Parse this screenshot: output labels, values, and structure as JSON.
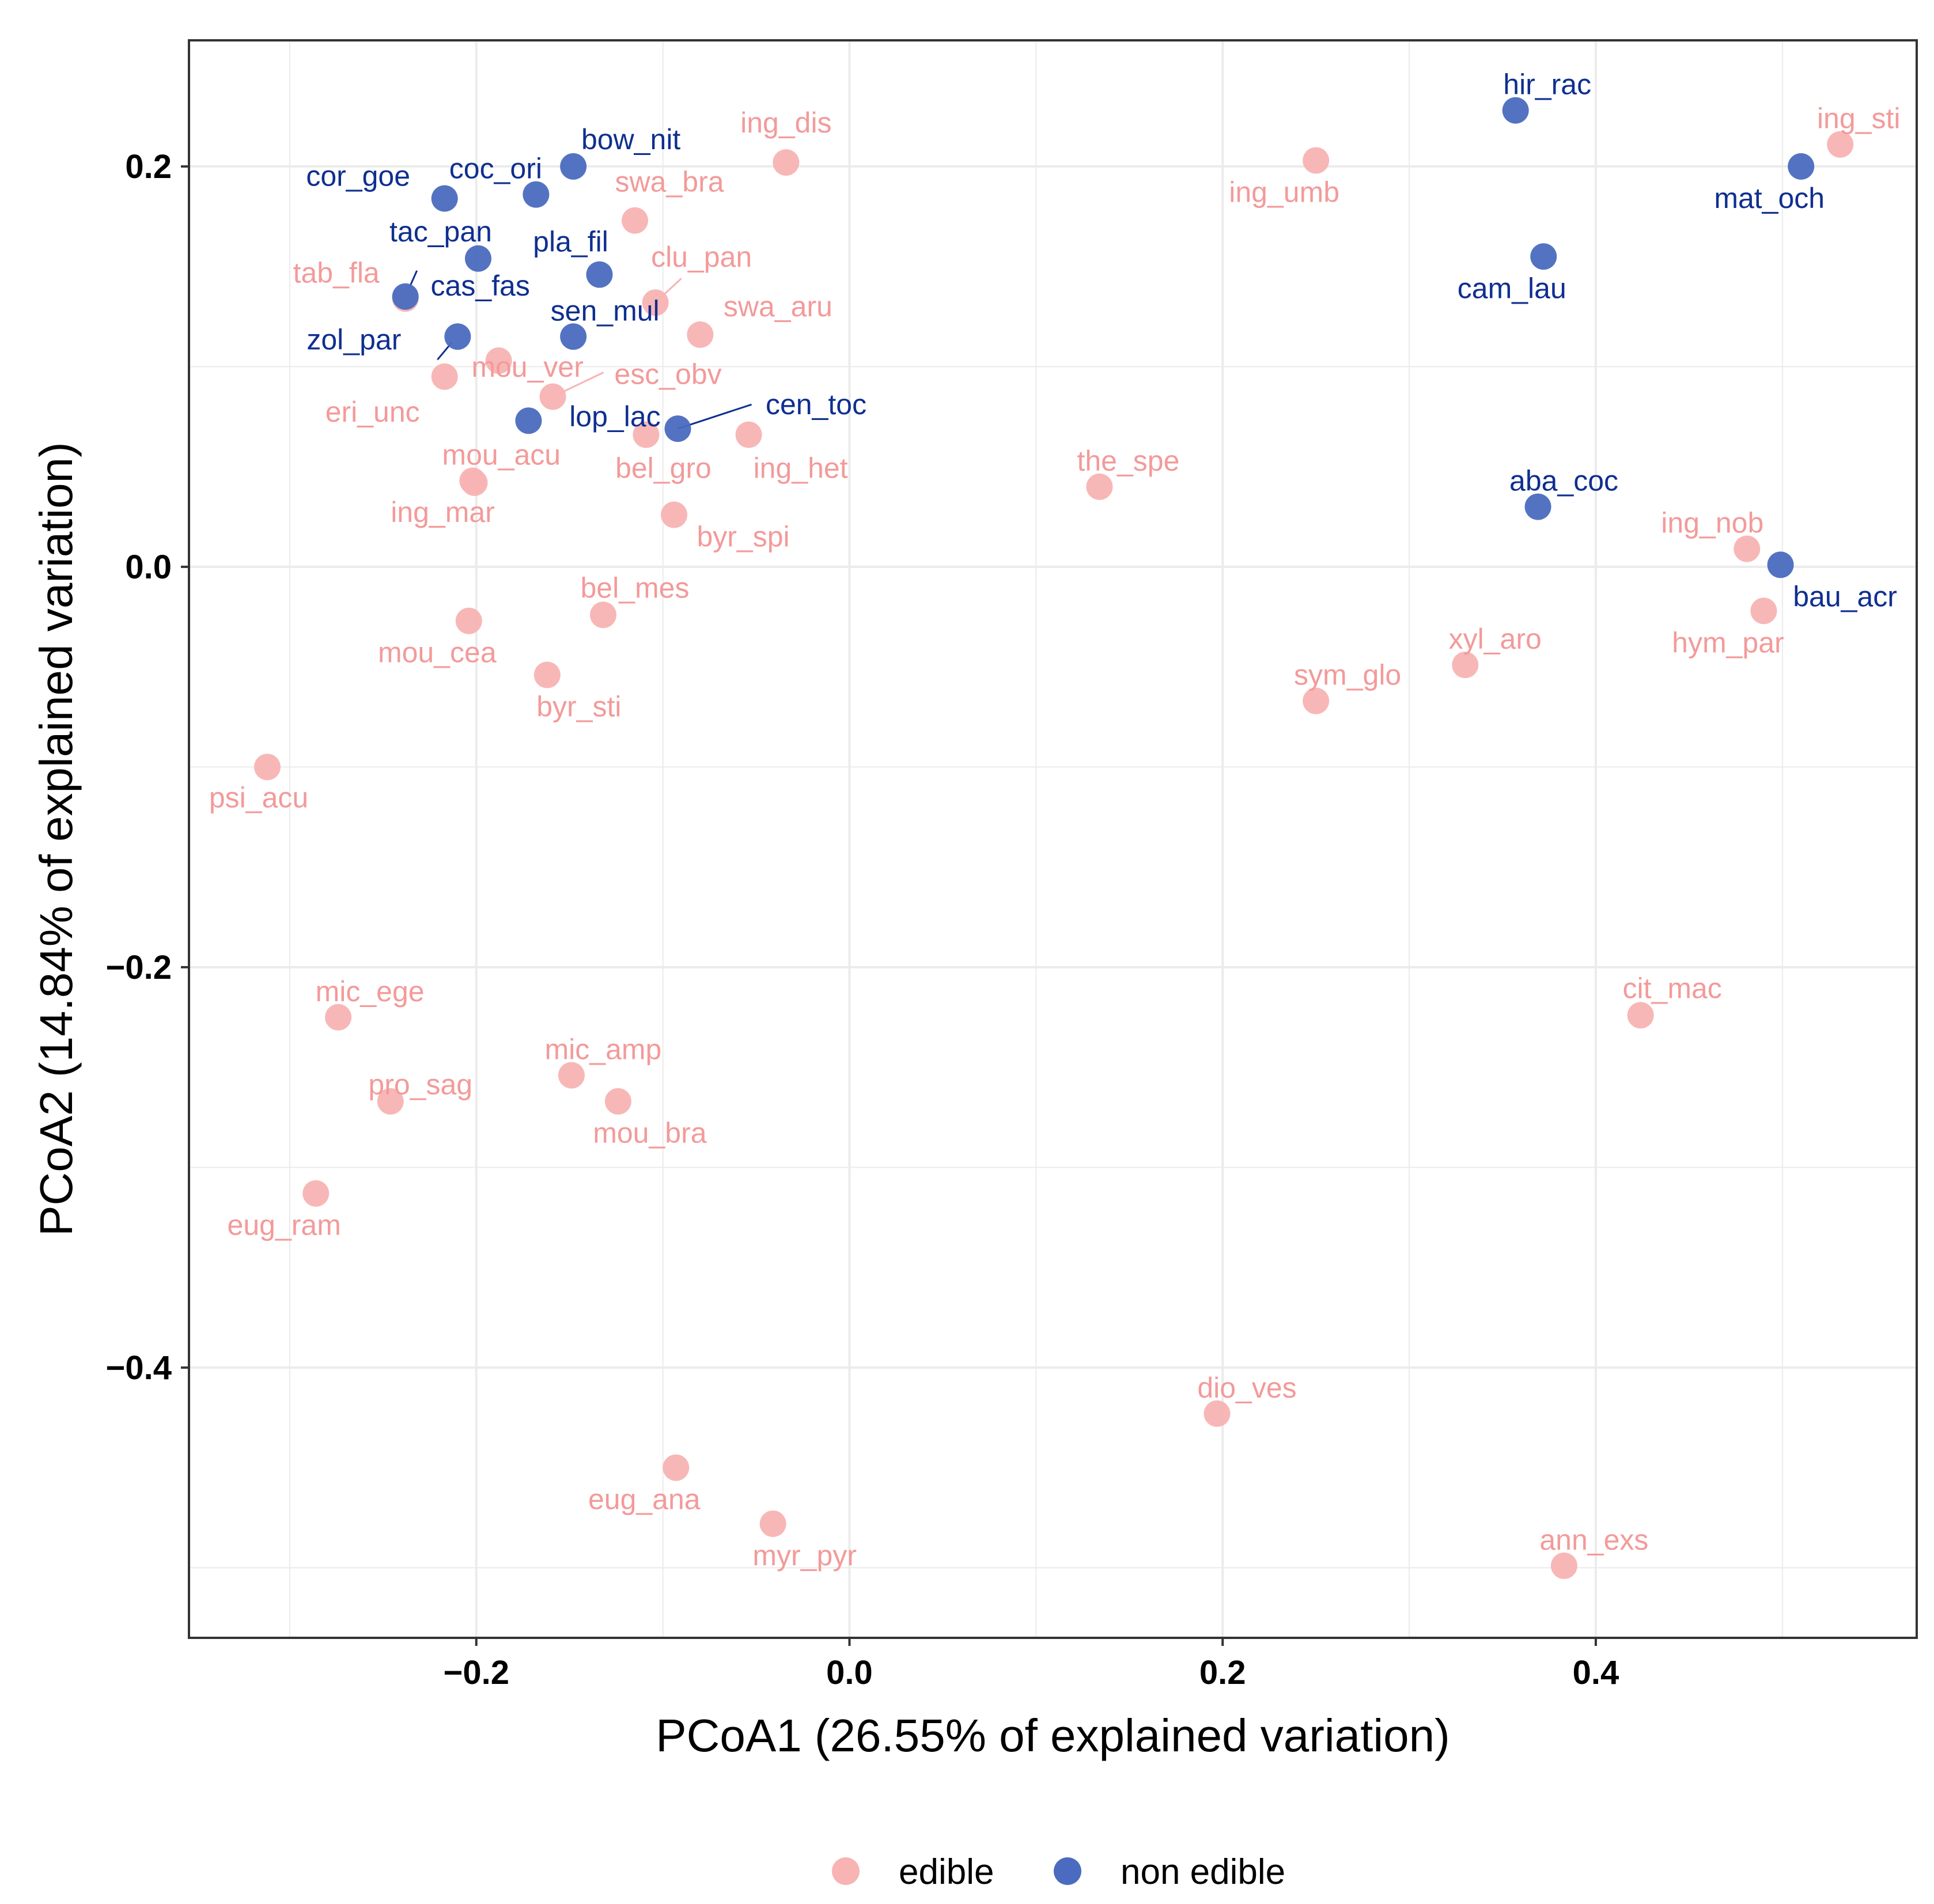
{
  "chart_data": {
    "type": "scatter",
    "xlabel": "PCoA1 (26.55% of explained variation)",
    "ylabel": "PCoA2 (14.84% of explained variation)",
    "xlim": [
      -0.354,
      0.572
    ],
    "ylim": [
      -0.535,
      0.263
    ],
    "xticks": [
      -0.2,
      0.0,
      0.2,
      0.4
    ],
    "yticks": [
      0.2,
      0.0,
      -0.2,
      -0.4
    ],
    "xtick_labels": [
      "−0.2",
      "0.0",
      "0.2",
      "0.4"
    ],
    "ytick_labels": [
      "0.2",
      "0.0",
      "−0.2",
      "−0.4"
    ],
    "grid": true,
    "legend_position": "bottom",
    "colors": {
      "edible": "#f8b3b3",
      "non_edible": "#4a6bbf",
      "edible_text": "#f39a9a",
      "non_edible_text": "#0f2f8f"
    },
    "series": [
      {
        "name": "edible",
        "points": [
          {
            "label": "ing_dis",
            "x": -0.034,
            "y": 0.202
          },
          {
            "label": "swa_bra",
            "x": -0.115,
            "y": 0.173
          },
          {
            "label": "clu_pan",
            "x": -0.104,
            "y": 0.132
          },
          {
            "label": "swa_aru",
            "x": -0.08,
            "y": 0.116
          },
          {
            "label": "tab_fla",
            "x": -0.238,
            "y": 0.134
          },
          {
            "label": "mou_ver",
            "x": -0.188,
            "y": 0.103
          },
          {
            "label": "esc_obv",
            "x": -0.159,
            "y": 0.085
          },
          {
            "label": "eri_unc",
            "x": -0.217,
            "y": 0.095
          },
          {
            "label": "bel_gro",
            "x": -0.109,
            "y": 0.066
          },
          {
            "label": "ing_het",
            "x": -0.054,
            "y": 0.066
          },
          {
            "label": "mou_acu",
            "x": -0.202,
            "y": 0.043
          },
          {
            "label": "ing_mar",
            "x": -0.201,
            "y": 0.042
          },
          {
            "label": "byr_spi",
            "x": -0.094,
            "y": 0.026
          },
          {
            "label": "bel_mes",
            "x": -0.132,
            "y": -0.024
          },
          {
            "label": "mou_cea",
            "x": -0.204,
            "y": -0.027
          },
          {
            "label": "byr_sti",
            "x": -0.162,
            "y": -0.054
          },
          {
            "label": "psi_acu",
            "x": -0.312,
            "y": -0.1
          },
          {
            "label": "mic_ege",
            "x": -0.274,
            "y": -0.225
          },
          {
            "label": "pro_sag",
            "x": -0.246,
            "y": -0.267
          },
          {
            "label": "mic_amp",
            "x": -0.149,
            "y": -0.254
          },
          {
            "label": "mou_bra",
            "x": -0.124,
            "y": -0.267
          },
          {
            "label": "eug_ram",
            "x": -0.286,
            "y": -0.313
          },
          {
            "label": "eug_ana",
            "x": -0.093,
            "y": -0.45
          },
          {
            "label": "myr_pyr",
            "x": -0.041,
            "y": -0.478
          },
          {
            "label": "ing_umb",
            "x": 0.25,
            "y": 0.203
          },
          {
            "label": "the_spe",
            "x": 0.134,
            "y": 0.04
          },
          {
            "label": "sym_glo",
            "x": 0.25,
            "y": -0.067
          },
          {
            "label": "xyl_aro",
            "x": 0.33,
            "y": -0.049
          },
          {
            "label": "dio_ves",
            "x": 0.197,
            "y": -0.423
          },
          {
            "label": "ann_exs",
            "x": 0.383,
            "y": -0.499
          },
          {
            "label": "cit_mac",
            "x": 0.424,
            "y": -0.224
          },
          {
            "label": "ing_sti",
            "x": 0.531,
            "y": 0.211
          },
          {
            "label": "ing_nob",
            "x": 0.481,
            "y": 0.009
          },
          {
            "label": "hym_par",
            "x": 0.49,
            "y": -0.022
          }
        ]
      },
      {
        "name": "non edible",
        "points": [
          {
            "label": "bow_nit",
            "x": -0.148,
            "y": 0.2
          },
          {
            "label": "coc_ori",
            "x": -0.168,
            "y": 0.186
          },
          {
            "label": "cor_goe",
            "x": -0.217,
            "y": 0.184
          },
          {
            "label": "tac_pan",
            "x": -0.199,
            "y": 0.154
          },
          {
            "label": "pla_fil",
            "x": -0.134,
            "y": 0.146
          },
          {
            "label": "cas_fas",
            "x": -0.238,
            "y": 0.135
          },
          {
            "label": "zol_par",
            "x": -0.21,
            "y": 0.115
          },
          {
            "label": "sen_mul",
            "x": -0.148,
            "y": 0.115
          },
          {
            "label": "lop_lac",
            "x": -0.172,
            "y": 0.073
          },
          {
            "label": "cen_toc",
            "x": -0.092,
            "y": 0.069
          },
          {
            "label": "hir_rac",
            "x": 0.357,
            "y": 0.228
          },
          {
            "label": "mat_och",
            "x": 0.51,
            "y": 0.2
          },
          {
            "label": "cam_lau",
            "x": 0.372,
            "y": 0.155
          },
          {
            "label": "aba_coc",
            "x": 0.369,
            "y": 0.03
          },
          {
            "label": "bau_acr",
            "x": 0.499,
            "y": 0.001
          }
        ]
      }
    ],
    "legend": [
      {
        "label": "edible"
      },
      {
        "label": "non edible"
      }
    ]
  }
}
